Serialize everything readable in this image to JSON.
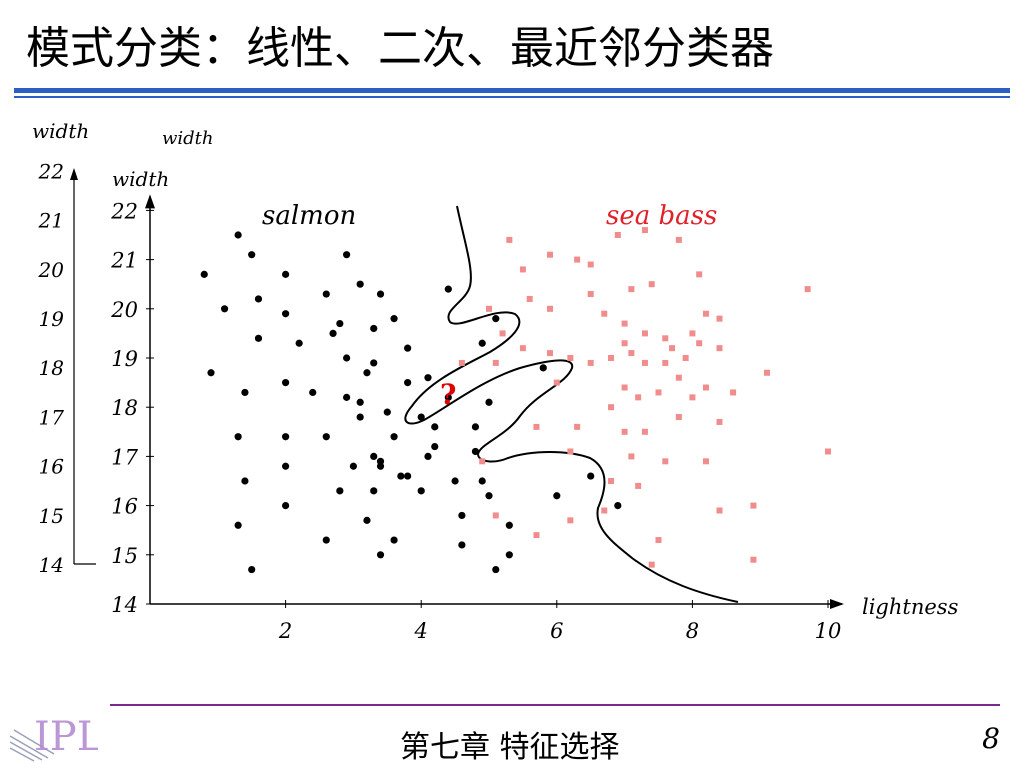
{
  "slide": {
    "title": "模式分类：线性、二次、最近邻分类器",
    "footer": "第七章  特征选择",
    "page_number": "8",
    "logo_text": "IPL"
  },
  "colors": {
    "rule_blue": "#2c5fc4",
    "footer_rule": "#7a2a8c",
    "salmon_points": "#000000",
    "seabass_points": "#f08c8c",
    "seabass_label": "#e0202a",
    "query_mark": "#e00000"
  },
  "chart_data": {
    "type": "scatter",
    "xlabel": "lightness",
    "ylabel": "width",
    "xlim": [
      0,
      10.2
    ],
    "ylim": [
      14,
      22
    ],
    "x_ticks": [
      "2",
      "4",
      "6",
      "8",
      "10"
    ],
    "y_ticks": [
      "14",
      "15",
      "16",
      "17",
      "18",
      "19",
      "20",
      "21",
      "22"
    ],
    "grid": false,
    "annotations": {
      "query": "?",
      "background_ylabel": "width",
      "background_ylabel_2": "width",
      "background_y_ticks": [
        "14",
        "15",
        "16",
        "17",
        "18",
        "19",
        "20",
        "21",
        "22"
      ]
    },
    "series": [
      {
        "name": "salmon",
        "points": [
          [
            1.3,
            21.5
          ],
          [
            1.5,
            21.1
          ],
          [
            0.8,
            20.7
          ],
          [
            1.1,
            20.0
          ],
          [
            1.6,
            20.2
          ],
          [
            2.0,
            20.7
          ],
          [
            2.9,
            21.1
          ],
          [
            3.1,
            20.5
          ],
          [
            2.6,
            20.3
          ],
          [
            3.4,
            20.3
          ],
          [
            1.6,
            19.4
          ],
          [
            2.0,
            19.9
          ],
          [
            2.2,
            19.3
          ],
          [
            2.8,
            19.7
          ],
          [
            2.7,
            19.5
          ],
          [
            3.3,
            19.6
          ],
          [
            3.6,
            19.8
          ],
          [
            0.9,
            18.7
          ],
          [
            1.4,
            18.3
          ],
          [
            2.0,
            18.5
          ],
          [
            2.4,
            18.3
          ],
          [
            2.9,
            19.0
          ],
          [
            3.3,
            18.9
          ],
          [
            3.1,
            18.1
          ],
          [
            2.9,
            18.2
          ],
          [
            3.8,
            19.2
          ],
          [
            3.2,
            18.7
          ],
          [
            3.5,
            17.9
          ],
          [
            3.8,
            18.5
          ],
          [
            4.2,
            17.6
          ],
          [
            4.1,
            18.6
          ],
          [
            4.4,
            18.2
          ],
          [
            1.3,
            17.4
          ],
          [
            2.0,
            17.4
          ],
          [
            2.6,
            17.4
          ],
          [
            3.1,
            17.8
          ],
          [
            3.6,
            17.4
          ],
          [
            3.3,
            17.0
          ],
          [
            3.0,
            16.8
          ],
          [
            3.4,
            16.8
          ],
          [
            3.7,
            16.6
          ],
          [
            4.2,
            17.2
          ],
          [
            4.1,
            17.0
          ],
          [
            2.0,
            16.8
          ],
          [
            1.4,
            16.5
          ],
          [
            2.0,
            16.0
          ],
          [
            2.8,
            16.3
          ],
          [
            3.3,
            16.3
          ],
          [
            3.4,
            16.9
          ],
          [
            3.8,
            16.6
          ],
          [
            4.0,
            16.3
          ],
          [
            4.5,
            16.5
          ],
          [
            4.8,
            17.1
          ],
          [
            4.9,
            16.5
          ],
          [
            5.0,
            16.2
          ],
          [
            1.3,
            15.6
          ],
          [
            2.6,
            15.3
          ],
          [
            3.2,
            15.7
          ],
          [
            3.6,
            15.3
          ],
          [
            3.4,
            15.0
          ],
          [
            4.6,
            15.2
          ],
          [
            4.6,
            15.8
          ],
          [
            5.3,
            15.6
          ],
          [
            5.3,
            15.0
          ],
          [
            5.1,
            14.7
          ],
          [
            1.5,
            14.7
          ],
          [
            5.0,
            18.1
          ],
          [
            4.9,
            19.3
          ],
          [
            5.1,
            19.8
          ],
          [
            4.4,
            20.4
          ],
          [
            6.5,
            16.6
          ],
          [
            6.9,
            16.0
          ],
          [
            6.0,
            16.2
          ],
          [
            5.8,
            18.8
          ],
          [
            4.0,
            17.8
          ],
          [
            4.8,
            17.6
          ]
        ]
      },
      {
        "name": "sea bass",
        "points": [
          [
            5.3,
            21.4
          ],
          [
            5.5,
            20.8
          ],
          [
            5.9,
            21.1
          ],
          [
            6.3,
            21.0
          ],
          [
            6.5,
            20.9
          ],
          [
            6.9,
            21.5
          ],
          [
            7.3,
            21.6
          ],
          [
            7.8,
            21.4
          ],
          [
            8.1,
            20.7
          ],
          [
            6.5,
            20.3
          ],
          [
            7.1,
            20.4
          ],
          [
            7.4,
            20.5
          ],
          [
            9.7,
            20.4
          ],
          [
            5.6,
            20.2
          ],
          [
            5.9,
            20.0
          ],
          [
            6.7,
            19.9
          ],
          [
            7.0,
            19.7
          ],
          [
            7.3,
            19.5
          ],
          [
            7.6,
            19.4
          ],
          [
            7.7,
            19.2
          ],
          [
            8.0,
            19.5
          ],
          [
            8.2,
            19.9
          ],
          [
            8.4,
            19.8
          ],
          [
            5.5,
            19.2
          ],
          [
            5.9,
            19.1
          ],
          [
            6.2,
            19.0
          ],
          [
            6.5,
            18.9
          ],
          [
            6.8,
            19.0
          ],
          [
            7.0,
            19.3
          ],
          [
            7.1,
            19.1
          ],
          [
            7.3,
            18.9
          ],
          [
            7.6,
            18.9
          ],
          [
            7.9,
            19.0
          ],
          [
            8.1,
            19.3
          ],
          [
            8.4,
            19.2
          ],
          [
            4.6,
            18.9
          ],
          [
            5.1,
            18.9
          ],
          [
            6.0,
            18.5
          ],
          [
            7.0,
            18.4
          ],
          [
            7.2,
            18.2
          ],
          [
            7.5,
            18.3
          ],
          [
            7.8,
            18.6
          ],
          [
            8.0,
            18.2
          ],
          [
            8.2,
            18.4
          ],
          [
            8.6,
            18.3
          ],
          [
            9.1,
            18.7
          ],
          [
            5.7,
            17.6
          ],
          [
            6.3,
            17.6
          ],
          [
            6.8,
            18.0
          ],
          [
            7.0,
            17.5
          ],
          [
            7.3,
            17.5
          ],
          [
            7.8,
            17.8
          ],
          [
            8.4,
            17.7
          ],
          [
            6.2,
            17.1
          ],
          [
            7.1,
            17.0
          ],
          [
            7.6,
            16.9
          ],
          [
            8.2,
            16.9
          ],
          [
            10.0,
            17.1
          ],
          [
            4.9,
            16.9
          ],
          [
            6.7,
            15.9
          ],
          [
            7.5,
            15.3
          ],
          [
            8.4,
            15.9
          ],
          [
            8.9,
            16.0
          ],
          [
            8.9,
            14.9
          ],
          [
            7.4,
            14.8
          ],
          [
            5.1,
            15.8
          ],
          [
            6.2,
            15.7
          ],
          [
            5.7,
            15.4
          ],
          [
            6.8,
            16.5
          ],
          [
            7.2,
            16.4
          ],
          [
            5.0,
            20.0
          ],
          [
            5.2,
            19.5
          ]
        ]
      }
    ]
  }
}
